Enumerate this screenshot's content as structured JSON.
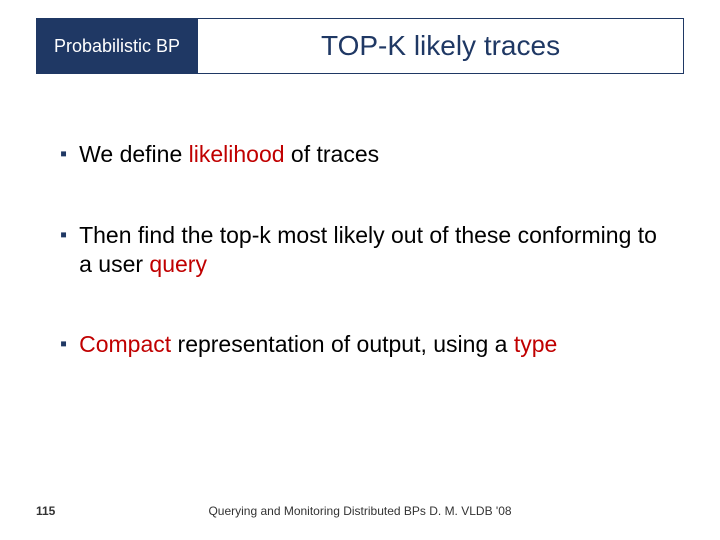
{
  "colors": {
    "header_bg": "#1f3864",
    "title_border": "#1f3864",
    "title_color": "#1f3864",
    "text_color": "#000000",
    "highlight_color": "#c00000",
    "bullet_color": "#1f3864"
  },
  "header": {
    "tag": "Probabilistic BP",
    "title": "TOP-K likely traces"
  },
  "bullets": [
    {
      "pre": "We define ",
      "hl": "likelihood",
      "post": " of traces"
    },
    {
      "pre": "Then find the top-k most likely out of these conforming to a user ",
      "hl": "query",
      "post": ""
    },
    {
      "pre": "",
      "hl": "Compact",
      "post": " representation of output, using a ",
      "hl2": "type"
    }
  ],
  "page_number": "115",
  "footer": "Querying and Monitoring Distributed BPs D. M. VLDB '08"
}
